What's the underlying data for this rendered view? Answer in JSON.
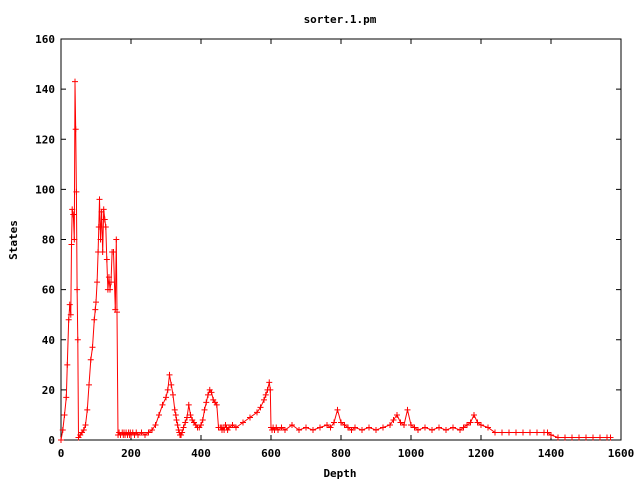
{
  "chart_data": {
    "type": "line",
    "title": "sorter.1.pm",
    "xlabel": "Depth",
    "ylabel": "States",
    "xlim": [
      0,
      1600
    ],
    "ylim": [
      0,
      160
    ],
    "xticks": [
      "0",
      "200",
      "400",
      "600",
      "800",
      "1000",
      "1200",
      "1400",
      "1600"
    ],
    "yticks": [
      "0",
      "20",
      "40",
      "60",
      "80",
      "100",
      "120",
      "140",
      "160"
    ],
    "grid": false,
    "legend": "none",
    "series_color": "#ff0000",
    "point_marker": "plus",
    "series": [
      {
        "x": [
          0,
          5,
          10,
          15,
          18,
          22,
          25,
          28,
          30,
          32,
          35,
          38,
          40,
          42,
          44,
          46,
          48,
          50,
          55,
          60,
          65,
          70,
          75,
          80,
          85,
          90,
          95,
          98,
          100,
          103,
          106,
          108,
          110,
          113,
          116,
          119,
          122,
          125,
          128,
          131,
          134,
          137,
          140,
          143,
          146,
          150,
          155,
          158,
          160,
          163,
          166,
          170,
          175,
          178,
          180,
          183,
          186,
          190,
          193,
          196,
          198,
          200,
          205,
          210,
          215,
          220,
          230,
          240,
          250,
          260,
          270,
          280,
          290,
          300,
          305,
          310,
          315,
          320,
          325,
          328,
          330,
          333,
          336,
          338,
          340,
          343,
          346,
          350,
          355,
          360,
          365,
          370,
          375,
          380,
          385,
          390,
          395,
          400,
          405,
          410,
          415,
          420,
          425,
          430,
          435,
          440,
          445,
          450,
          455,
          458,
          460,
          463,
          466,
          470,
          473,
          476,
          480,
          490,
          500,
          520,
          540,
          560,
          570,
          580,
          585,
          590,
          595,
          598,
          600,
          603,
          606,
          610,
          615,
          620,
          630,
          640,
          660,
          680,
          700,
          720,
          740,
          760,
          770,
          780,
          790,
          800,
          810,
          820,
          830,
          840,
          860,
          880,
          900,
          920,
          940,
          950,
          960,
          970,
          980,
          990,
          1000,
          1010,
          1020,
          1040,
          1060,
          1080,
          1100,
          1120,
          1140,
          1150,
          1160,
          1170,
          1180,
          1190,
          1200,
          1220,
          1240,
          1260,
          1280,
          1300,
          1320,
          1340,
          1360,
          1380,
          1390,
          1400,
          1420,
          1440,
          1460,
          1480,
          1500,
          1520,
          1540,
          1560,
          1570
        ],
        "y": [
          0,
          4,
          10,
          17,
          30,
          48,
          54,
          50,
          78,
          92,
          90,
          80,
          143,
          124,
          99,
          60,
          40,
          1,
          2,
          3,
          4,
          6,
          12,
          22,
          32,
          37,
          48,
          52,
          55,
          63,
          75,
          85,
          96,
          80,
          91,
          75,
          92,
          88,
          85,
          72,
          60,
          65,
          60,
          63,
          75,
          75,
          52,
          80,
          51,
          2,
          3,
          2,
          3,
          2,
          3,
          2,
          3,
          2,
          3,
          2,
          3,
          2,
          3,
          2,
          3,
          2,
          3,
          2,
          3,
          4,
          6,
          10,
          14,
          17,
          20,
          26,
          22,
          18,
          12,
          10,
          8,
          6,
          4,
          3,
          2,
          2,
          3,
          5,
          7,
          9,
          14,
          10,
          8,
          7,
          6,
          5,
          5,
          6,
          8,
          12,
          15,
          18,
          20,
          19,
          16,
          15,
          14,
          5,
          5,
          5,
          4,
          5,
          4,
          6,
          5,
          4,
          5,
          6,
          5,
          7,
          9,
          11,
          13,
          16,
          18,
          20,
          23,
          20,
          5,
          4,
          5,
          4,
          5,
          4,
          5,
          4,
          6,
          4,
          5,
          4,
          5,
          6,
          5,
          7,
          12,
          7,
          6,
          5,
          4,
          5,
          4,
          5,
          4,
          5,
          6,
          8,
          10,
          7,
          6,
          12,
          6,
          5,
          4,
          5,
          4,
          5,
          4,
          5,
          4,
          5,
          6,
          7,
          10,
          7,
          6,
          5,
          3,
          3,
          3,
          3,
          3,
          3,
          3,
          3,
          3,
          2,
          1,
          1,
          1,
          1,
          1,
          1,
          1,
          1,
          1
        ]
      }
    ]
  }
}
